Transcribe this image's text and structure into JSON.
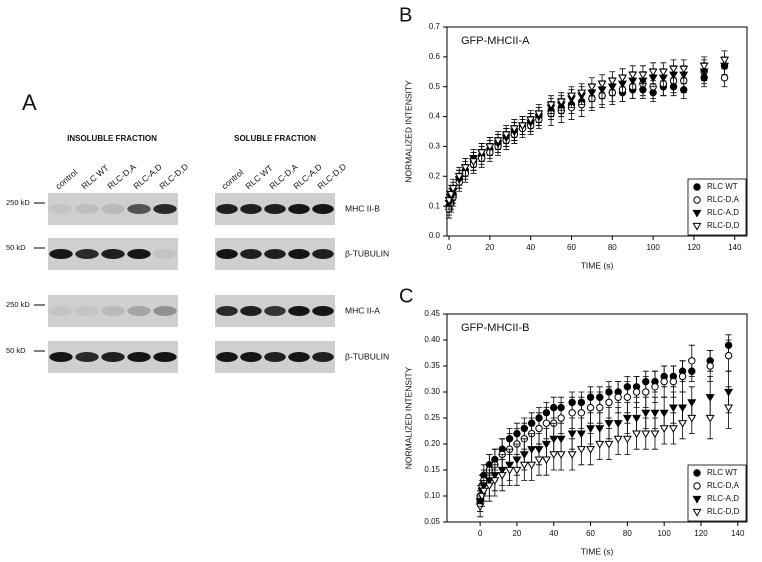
{
  "panel_a": {
    "label": "A",
    "insoluble": {
      "title": "INSOLUBLE FRACTION",
      "lanes": [
        "control",
        "RLC WT",
        "RLC-D,A",
        "RLC-A,D",
        "RLC-D,D"
      ]
    },
    "soluble": {
      "title": "SOLUBLE FRACTION",
      "lanes": [
        "control",
        "RLC WT",
        "RLC-D,A",
        "RLC-A,D",
        "RLC-D,D"
      ]
    },
    "size_markers": [
      "250 kD",
      "50 kD",
      "250 kD",
      "50 kD"
    ],
    "proteins": [
      "MHC II-B",
      "β-TUBULIN",
      "MHC II-A",
      "β-TUBULIN"
    ]
  },
  "chart_data": [
    {
      "type": "scatter",
      "panel_label": "B",
      "title": "GFP-MHCII-A",
      "xlabel": "TIME (s)",
      "ylabel": "NORMALIZED INTENSITY",
      "x": [
        0,
        1,
        2,
        5,
        8,
        12,
        16,
        20,
        24,
        28,
        32,
        36,
        40,
        44,
        50,
        55,
        60,
        65,
        70,
        75,
        80,
        85,
        90,
        95,
        100,
        105,
        110,
        115,
        125,
        135
      ],
      "xlim": [
        -1,
        146
      ],
      "xticks": [
        0,
        20,
        40,
        60,
        80,
        100,
        120,
        140
      ],
      "ylim": [
        0,
        0.7
      ],
      "yticks": [
        {
          "value": 0,
          "label": "0.0"
        },
        0.1,
        0.2,
        0.3,
        0.4,
        0.5,
        0.6,
        0.7
      ],
      "legend": "lower right",
      "series": [
        {
          "name": "RLC WT",
          "marker": "circle",
          "filled": true,
          "color": "#000000",
          "values": [
            0.1,
            0.12,
            0.14,
            0.19,
            0.22,
            0.25,
            0.27,
            0.29,
            0.31,
            0.33,
            0.35,
            0.37,
            0.38,
            0.4,
            0.42,
            0.43,
            0.44,
            0.45,
            0.46,
            0.47,
            0.48,
            0.48,
            0.49,
            0.49,
            0.48,
            0.5,
            0.5,
            0.49,
            0.53,
            0.57
          ],
          "errors": [
            0.03,
            0.03,
            0.03,
            0.03,
            0.03,
            0.03,
            0.03,
            0.03,
            0.03,
            0.03,
            0.03,
            0.03,
            0.03,
            0.03,
            0.03,
            0.03,
            0.03,
            0.03,
            0.03,
            0.03,
            0.03,
            0.03,
            0.03,
            0.03,
            0.03,
            0.03,
            0.03,
            0.03,
            0.03,
            0.03
          ]
        },
        {
          "name": "RLC-D,A",
          "marker": "circle",
          "filled": false,
          "color": "#000000",
          "values": [
            0.09,
            0.11,
            0.13,
            0.18,
            0.21,
            0.24,
            0.26,
            0.28,
            0.3,
            0.32,
            0.34,
            0.36,
            0.37,
            0.39,
            0.41,
            0.42,
            0.43,
            0.44,
            0.46,
            0.47,
            0.48,
            0.49,
            0.5,
            0.51,
            0.5,
            0.51,
            0.52,
            0.52,
            0.55,
            0.53
          ],
          "errors": [
            0.03,
            0.03,
            0.03,
            0.03,
            0.03,
            0.03,
            0.03,
            0.03,
            0.03,
            0.03,
            0.03,
            0.03,
            0.03,
            0.03,
            0.04,
            0.04,
            0.04,
            0.04,
            0.04,
            0.04,
            0.04,
            0.04,
            0.04,
            0.04,
            0.04,
            0.04,
            0.04,
            0.04,
            0.04,
            0.03
          ]
        },
        {
          "name": "RLC-A,D",
          "marker": "triangle",
          "filled": true,
          "color": "#000000",
          "values": [
            0.11,
            0.13,
            0.15,
            0.19,
            0.23,
            0.26,
            0.28,
            0.3,
            0.31,
            0.33,
            0.35,
            0.37,
            0.38,
            0.4,
            0.43,
            0.44,
            0.46,
            0.47,
            0.48,
            0.49,
            0.5,
            0.51,
            0.52,
            0.52,
            0.53,
            0.53,
            0.54,
            0.54,
            0.55,
            0.57
          ],
          "errors": [
            0.03,
            0.03,
            0.03,
            0.03,
            0.03,
            0.03,
            0.03,
            0.03,
            0.03,
            0.03,
            0.03,
            0.03,
            0.03,
            0.03,
            0.03,
            0.03,
            0.03,
            0.03,
            0.03,
            0.03,
            0.03,
            0.03,
            0.03,
            0.03,
            0.03,
            0.03,
            0.03,
            0.03,
            0.03,
            0.03
          ]
        },
        {
          "name": "RLC-D,D",
          "marker": "triangle",
          "filled": false,
          "color": "#000000",
          "values": [
            0.12,
            0.14,
            0.16,
            0.2,
            0.23,
            0.25,
            0.28,
            0.3,
            0.32,
            0.34,
            0.36,
            0.37,
            0.39,
            0.41,
            0.44,
            0.45,
            0.47,
            0.48,
            0.5,
            0.51,
            0.52,
            0.53,
            0.54,
            0.54,
            0.55,
            0.55,
            0.56,
            0.56,
            0.57,
            0.59
          ],
          "errors": [
            0.03,
            0.03,
            0.03,
            0.03,
            0.03,
            0.03,
            0.03,
            0.03,
            0.03,
            0.03,
            0.03,
            0.03,
            0.03,
            0.03,
            0.03,
            0.03,
            0.03,
            0.03,
            0.03,
            0.03,
            0.03,
            0.03,
            0.03,
            0.03,
            0.03,
            0.03,
            0.03,
            0.03,
            0.03,
            0.03
          ]
        }
      ]
    },
    {
      "type": "scatter",
      "panel_label": "C",
      "title": "GFP-MHCII-B",
      "xlabel": "TIME (s)",
      "ylabel": "NORMALIZED INTENSITY",
      "x": [
        0,
        1,
        2,
        5,
        8,
        12,
        16,
        20,
        24,
        28,
        32,
        36,
        40,
        44,
        50,
        55,
        60,
        65,
        70,
        75,
        80,
        85,
        90,
        95,
        100,
        105,
        110,
        115,
        125,
        135
      ],
      "xlim": [
        -18,
        145
      ],
      "xticks": [
        0,
        20,
        40,
        60,
        80,
        100,
        120,
        140
      ],
      "ylim": [
        0.05,
        0.45
      ],
      "yticks": [
        0.05,
        {
          "value": 0.1,
          "label": "0.10"
        },
        0.15,
        {
          "value": 0.2,
          "label": "0.20"
        },
        0.25,
        {
          "value": 0.3,
          "label": "0.30"
        },
        0.35,
        {
          "value": 0.4,
          "label": "0.40"
        },
        0.45
      ],
      "legend": "lower right",
      "series": [
        {
          "name": "RLC WT",
          "marker": "circle",
          "filled": true,
          "color": "#000000",
          "values": [
            0.09,
            0.12,
            0.14,
            0.16,
            0.17,
            0.19,
            0.21,
            0.22,
            0.23,
            0.24,
            0.25,
            0.26,
            0.27,
            0.27,
            0.28,
            0.28,
            0.29,
            0.29,
            0.3,
            0.3,
            0.31,
            0.31,
            0.32,
            0.32,
            0.33,
            0.33,
            0.34,
            0.34,
            0.36,
            0.39
          ],
          "errors": [
            0.02,
            0.02,
            0.02,
            0.02,
            0.02,
            0.02,
            0.02,
            0.02,
            0.02,
            0.02,
            0.02,
            0.02,
            0.02,
            0.02,
            0.02,
            0.02,
            0.02,
            0.02,
            0.02,
            0.02,
            0.02,
            0.02,
            0.02,
            0.02,
            0.02,
            0.02,
            0.02,
            0.02,
            0.02,
            0.02
          ]
        },
        {
          "name": "RLC-D,A",
          "marker": "circle",
          "filled": false,
          "color": "#000000",
          "values": [
            0.1,
            0.12,
            0.13,
            0.15,
            0.16,
            0.18,
            0.19,
            0.2,
            0.21,
            0.22,
            0.23,
            0.24,
            0.24,
            0.25,
            0.26,
            0.26,
            0.27,
            0.27,
            0.28,
            0.29,
            0.29,
            0.3,
            0.3,
            0.31,
            0.32,
            0.32,
            0.33,
            0.36,
            0.35,
            0.37
          ],
          "errors": [
            0.02,
            0.02,
            0.02,
            0.03,
            0.03,
            0.03,
            0.03,
            0.03,
            0.03,
            0.03,
            0.03,
            0.03,
            0.03,
            0.03,
            0.03,
            0.03,
            0.03,
            0.03,
            0.03,
            0.03,
            0.03,
            0.03,
            0.03,
            0.03,
            0.03,
            0.03,
            0.03,
            0.03,
            0.03,
            0.03
          ]
        },
        {
          "name": "RLC-A,D",
          "marker": "triangle",
          "filled": true,
          "color": "#000000",
          "values": [
            0.09,
            0.11,
            0.12,
            0.13,
            0.14,
            0.15,
            0.16,
            0.17,
            0.18,
            0.19,
            0.19,
            0.2,
            0.21,
            0.21,
            0.22,
            0.22,
            0.23,
            0.23,
            0.24,
            0.24,
            0.25,
            0.25,
            0.26,
            0.26,
            0.26,
            0.27,
            0.27,
            0.28,
            0.29,
            0.3
          ],
          "errors": [
            0.02,
            0.02,
            0.02,
            0.03,
            0.03,
            0.03,
            0.03,
            0.03,
            0.03,
            0.03,
            0.03,
            0.03,
            0.03,
            0.03,
            0.03,
            0.03,
            0.03,
            0.03,
            0.03,
            0.03,
            0.03,
            0.03,
            0.03,
            0.03,
            0.03,
            0.03,
            0.03,
            0.03,
            0.04,
            0.04
          ]
        },
        {
          "name": "RLC-D,D",
          "marker": "triangle",
          "filled": false,
          "color": "#000000",
          "values": [
            0.08,
            0.1,
            0.11,
            0.12,
            0.13,
            0.14,
            0.15,
            0.15,
            0.16,
            0.16,
            0.17,
            0.17,
            0.18,
            0.18,
            0.18,
            0.19,
            0.19,
            0.2,
            0.2,
            0.21,
            0.21,
            0.22,
            0.22,
            0.22,
            0.23,
            0.23,
            0.24,
            0.25,
            0.25,
            0.27
          ],
          "errors": [
            0.02,
            0.02,
            0.02,
            0.03,
            0.03,
            0.03,
            0.03,
            0.03,
            0.03,
            0.03,
            0.03,
            0.03,
            0.03,
            0.03,
            0.03,
            0.03,
            0.03,
            0.03,
            0.03,
            0.03,
            0.03,
            0.03,
            0.03,
            0.03,
            0.03,
            0.03,
            0.03,
            0.03,
            0.04,
            0.04
          ]
        }
      ]
    }
  ]
}
